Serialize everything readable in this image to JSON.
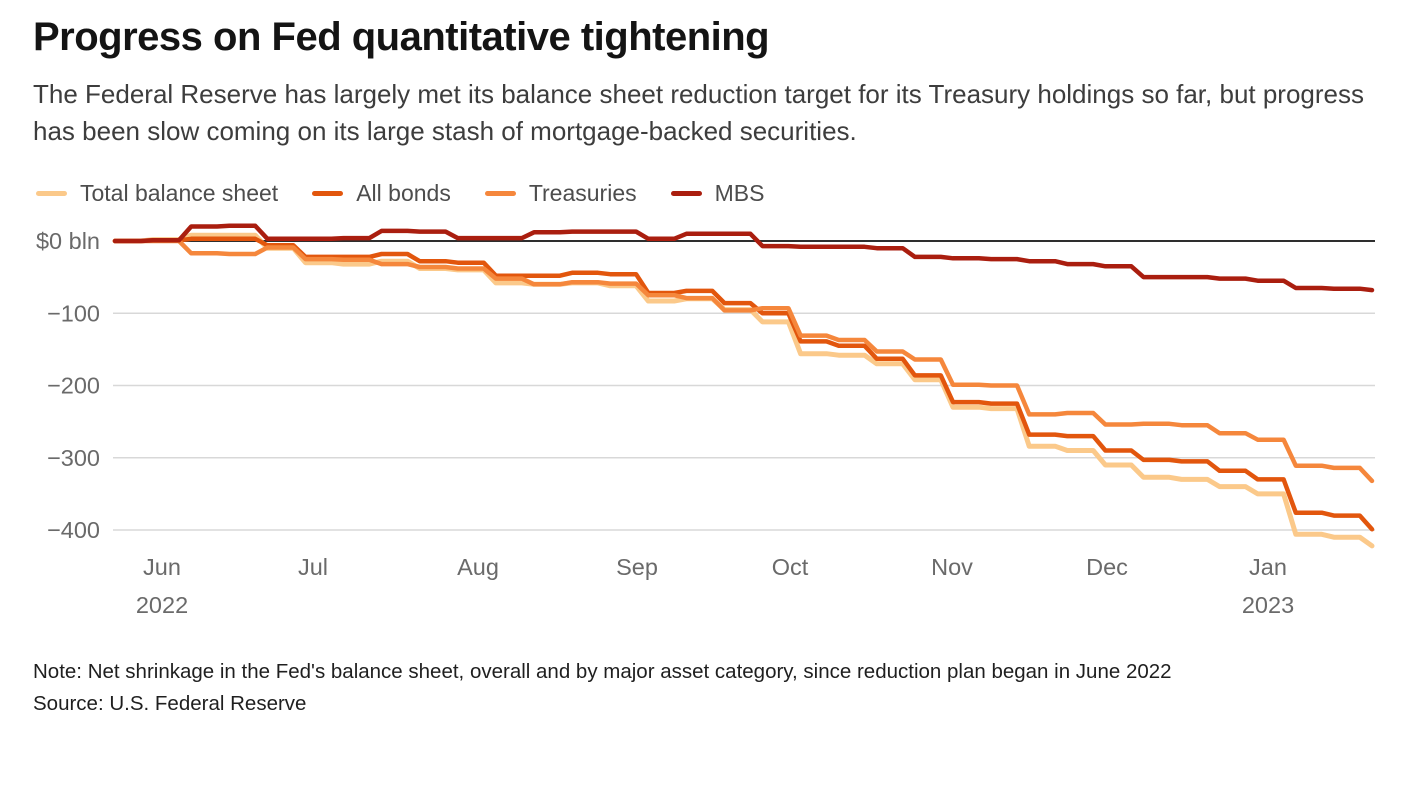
{
  "header": {
    "title": "Progress on Fed quantitative tightening",
    "subtitle": "The Federal Reserve has largely met its balance sheet reduction target for its Treasury holdings so far, but progress has been slow coming on its large stash of mortgage-backed securities."
  },
  "footer": {
    "note": "Note: Net shrinkage in the Fed's balance sheet, overall and by major asset category, since reduction plan began in June 2022",
    "source": "Source: U.S. Federal Reserve"
  },
  "colors": {
    "total_balance_sheet": "#FBC98A",
    "all_bonds": "#E2560D",
    "treasuries": "#F5873C",
    "mbs": "#AA1E0F",
    "zero_line": "#2e2e2e",
    "gridline": "#d8d8d8",
    "axis_text": "#6e6e6e"
  },
  "chart_data": {
    "type": "line",
    "step": true,
    "title": "Progress on Fed quantitative tightening",
    "unit": "$ bln",
    "ylabel": "",
    "xlabel": "",
    "ylim": [
      -440,
      30
    ],
    "grid": "horizontal",
    "legend_position": "top-left",
    "x": [
      "2022-06-01",
      "2022-06-08",
      "2022-06-15",
      "2022-06-22",
      "2022-06-29",
      "2022-07-06",
      "2022-07-13",
      "2022-07-20",
      "2022-07-27",
      "2022-08-03",
      "2022-08-10",
      "2022-08-17",
      "2022-08-24",
      "2022-08-31",
      "2022-09-07",
      "2022-09-14",
      "2022-09-21",
      "2022-09-28",
      "2022-10-05",
      "2022-10-12",
      "2022-10-19",
      "2022-10-26",
      "2022-11-02",
      "2022-11-09",
      "2022-11-16",
      "2022-11-23",
      "2022-11-30",
      "2022-12-07",
      "2022-12-14",
      "2022-12-21",
      "2022-12-28",
      "2023-01-04",
      "2023-01-11",
      "2023-01-18"
    ],
    "x_ticks": [
      {
        "label": "Jun",
        "sub": "2022"
      },
      {
        "label": "Jul",
        "sub": ""
      },
      {
        "label": "Aug",
        "sub": ""
      },
      {
        "label": "Sep",
        "sub": ""
      },
      {
        "label": "Oct",
        "sub": ""
      },
      {
        "label": "Nov",
        "sub": ""
      },
      {
        "label": "Dec",
        "sub": ""
      },
      {
        "label": "Jan",
        "sub": "2023"
      }
    ],
    "y_ticks": [
      {
        "value": 0,
        "label": "$0 bln"
      },
      {
        "value": -100,
        "label": "−100"
      },
      {
        "value": -200,
        "label": "−200"
      },
      {
        "value": -300,
        "label": "−300"
      },
      {
        "value": -400,
        "label": "−400"
      }
    ],
    "series": [
      {
        "name": "Total balance sheet",
        "color": "#FBC98A",
        "stroke_width": 5,
        "values": [
          0,
          2,
          8,
          8,
          -10,
          -30,
          -32,
          -28,
          -38,
          -40,
          -58,
          -60,
          -58,
          -62,
          -83,
          -80,
          -95,
          -112,
          -156,
          -158,
          -170,
          -192,
          -230,
          -232,
          -284,
          -290,
          -310,
          -327,
          -330,
          -340,
          -350,
          -406,
          -410,
          -422
        ]
      },
      {
        "name": "All bonds",
        "color": "#E2560D",
        "stroke_width": 4.5,
        "values": [
          0,
          1,
          3,
          3,
          -6,
          -22,
          -22,
          -18,
          -28,
          -30,
          -48,
          -48,
          -44,
          -46,
          -72,
          -69,
          -86,
          -100,
          -139,
          -145,
          -163,
          -186,
          -223,
          -225,
          -268,
          -270,
          -290,
          -303,
          -305,
          -318,
          -330,
          -376,
          -380,
          -399
        ]
      },
      {
        "name": "Treasuries",
        "color": "#F5873C",
        "stroke_width": 4.5,
        "values": [
          0,
          0,
          -17,
          -18,
          -9,
          -25,
          -26,
          -32,
          -36,
          -38,
          -52,
          -60,
          -57,
          -59,
          -75,
          -79,
          -96,
          -93,
          -131,
          -137,
          -153,
          -164,
          -199,
          -200,
          -240,
          -238,
          -254,
          -253,
          -255,
          -266,
          -275,
          -311,
          -314,
          -332
        ]
      },
      {
        "name": "MBS",
        "color": "#AA1E0F",
        "stroke_width": 4.5,
        "values": [
          0,
          1,
          20,
          21,
          3,
          3,
          4,
          14,
          13,
          4,
          4,
          12,
          13,
          13,
          3,
          10,
          10,
          -7,
          -8,
          -8,
          -10,
          -22,
          -24,
          -25,
          -28,
          -32,
          -35,
          -50,
          -50,
          -52,
          -55,
          -65,
          -66,
          -68
        ]
      }
    ]
  }
}
